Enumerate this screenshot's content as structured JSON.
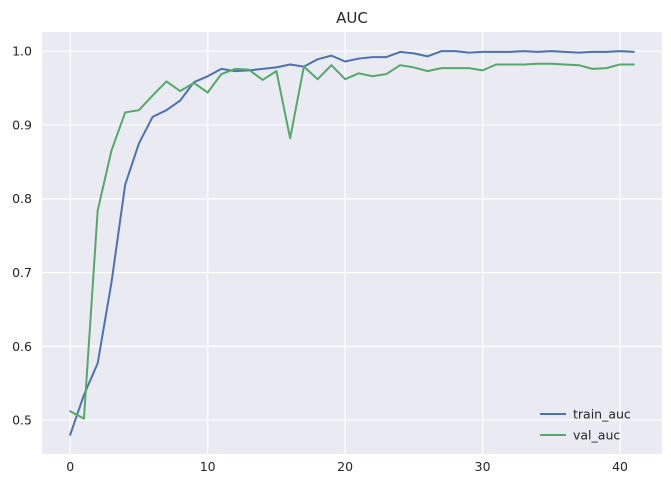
{
  "chart_data": {
    "type": "line",
    "title": "AUC",
    "xlabel": "",
    "ylabel": "",
    "xlim": [
      -2.05,
      43.05
    ],
    "ylim": [
      0.454,
      1.026
    ],
    "xticks": [
      0,
      10,
      20,
      30,
      40
    ],
    "yticks": [
      0.5,
      0.6,
      0.7,
      0.8,
      0.9,
      1.0
    ],
    "xtick_labels": [
      "0",
      "10",
      "20",
      "30",
      "40"
    ],
    "ytick_labels": [
      "0.5",
      "0.6",
      "0.7",
      "0.8",
      "0.9",
      "1.0"
    ],
    "grid": true,
    "legend_position": "lower-right",
    "x": [
      0,
      1,
      2,
      3,
      4,
      5,
      6,
      7,
      8,
      9,
      10,
      11,
      12,
      13,
      14,
      15,
      16,
      17,
      18,
      19,
      20,
      21,
      22,
      23,
      24,
      25,
      26,
      27,
      28,
      29,
      30,
      31,
      32,
      33,
      34,
      35,
      36,
      37,
      38,
      39,
      40,
      41
    ],
    "series": [
      {
        "name": "train_auc",
        "color": "#4c72b0",
        "values": [
          0.48,
          0.534,
          0.577,
          0.686,
          0.819,
          0.875,
          0.911,
          0.92,
          0.933,
          0.958,
          0.966,
          0.976,
          0.973,
          0.974,
          0.976,
          0.978,
          0.982,
          0.979,
          0.989,
          0.994,
          0.986,
          0.99,
          0.992,
          0.992,
          0.999,
          0.997,
          0.993,
          1.0,
          1.0,
          0.998,
          0.999,
          0.999,
          0.999,
          1.0,
          0.999,
          1.0,
          0.999,
          0.998,
          0.999,
          0.999,
          1.0,
          0.999
        ]
      },
      {
        "name": "val_auc",
        "color": "#55a868",
        "values": [
          0.512,
          0.502,
          0.784,
          0.865,
          0.917,
          0.92,
          0.94,
          0.959,
          0.946,
          0.957,
          0.944,
          0.969,
          0.976,
          0.975,
          0.961,
          0.973,
          0.882,
          0.979,
          0.962,
          0.981,
          0.962,
          0.97,
          0.966,
          0.969,
          0.981,
          0.978,
          0.973,
          0.977,
          0.977,
          0.977,
          0.974,
          0.982,
          0.982,
          0.982,
          0.983,
          0.983,
          0.982,
          0.981,
          0.976,
          0.977,
          0.982,
          0.982
        ]
      }
    ]
  }
}
